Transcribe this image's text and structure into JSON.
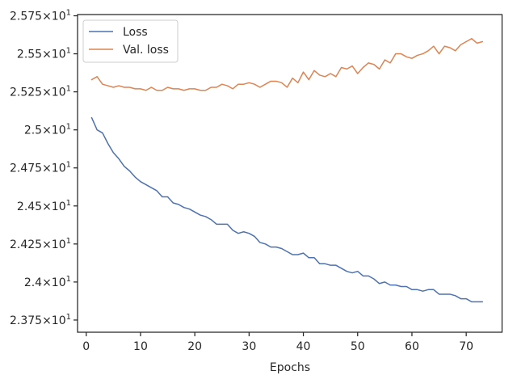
{
  "chart_data": {
    "type": "line",
    "xlabel": "Epochs",
    "ylabel": "",
    "title": "",
    "xlim": [
      -1.6,
      76.6
    ],
    "ylim": [
      23.67,
      25.758
    ],
    "x_ticks": [
      0,
      10,
      20,
      30,
      40,
      50,
      60,
      70
    ],
    "y_ticks": [
      23.75,
      24.0,
      24.25,
      24.5,
      24.75,
      25.0,
      25.25,
      25.5,
      25.75
    ],
    "y_tick_labels": [
      {
        "mant": "2.375",
        "exp": "1"
      },
      {
        "mant": "2.4",
        "exp": "1"
      },
      {
        "mant": "2.425",
        "exp": "1"
      },
      {
        "mant": "2.45",
        "exp": "1"
      },
      {
        "mant": "2.475",
        "exp": "1"
      },
      {
        "mant": "2.5",
        "exp": "1"
      },
      {
        "mant": "2.525",
        "exp": "1"
      },
      {
        "mant": "2.55",
        "exp": "1"
      },
      {
        "mant": "2.575",
        "exp": "1"
      }
    ],
    "grid": false,
    "legend_position": "upper-left",
    "series": [
      {
        "name": "Loss",
        "color": "#4c72b0",
        "x": [
          1,
          2,
          3,
          4,
          5,
          6,
          7,
          8,
          9,
          10,
          11,
          12,
          13,
          14,
          15,
          16,
          17,
          18,
          19,
          20,
          21,
          22,
          23,
          24,
          25,
          26,
          27,
          28,
          29,
          30,
          31,
          32,
          33,
          34,
          35,
          36,
          37,
          38,
          39,
          40,
          41,
          42,
          43,
          44,
          45,
          46,
          47,
          48,
          49,
          50,
          51,
          52,
          53,
          54,
          55,
          56,
          57,
          58,
          59,
          60,
          61,
          62,
          63,
          64,
          65,
          66,
          67,
          68,
          69,
          70,
          71,
          72,
          73
        ],
        "values": [
          25.08,
          25.0,
          24.98,
          24.91,
          24.85,
          24.81,
          24.76,
          24.73,
          24.69,
          24.66,
          24.64,
          24.62,
          24.6,
          24.56,
          24.56,
          24.52,
          24.51,
          24.49,
          24.48,
          24.46,
          24.44,
          24.43,
          24.41,
          24.38,
          24.38,
          24.38,
          24.34,
          24.32,
          24.33,
          24.32,
          24.3,
          24.26,
          24.25,
          24.23,
          24.23,
          24.22,
          24.2,
          24.18,
          24.18,
          24.19,
          24.16,
          24.16,
          24.12,
          24.12,
          24.11,
          24.11,
          24.09,
          24.07,
          24.06,
          24.07,
          24.04,
          24.04,
          24.02,
          23.99,
          24.0,
          23.98,
          23.98,
          23.97,
          23.97,
          23.95,
          23.95,
          23.94,
          23.95,
          23.95,
          23.92,
          23.92,
          23.92,
          23.91,
          23.89,
          23.89,
          23.87,
          23.87,
          23.87
        ]
      },
      {
        "name": "Val. loss",
        "color": "#dd8452",
        "x": [
          1,
          2,
          3,
          4,
          5,
          6,
          7,
          8,
          9,
          10,
          11,
          12,
          13,
          14,
          15,
          16,
          17,
          18,
          19,
          20,
          21,
          22,
          23,
          24,
          25,
          26,
          27,
          28,
          29,
          30,
          31,
          32,
          33,
          34,
          35,
          36,
          37,
          38,
          39,
          40,
          41,
          42,
          43,
          44,
          45,
          46,
          47,
          48,
          49,
          50,
          51,
          52,
          53,
          54,
          55,
          56,
          57,
          58,
          59,
          60,
          61,
          62,
          63,
          64,
          65,
          66,
          67,
          68,
          69,
          70,
          71,
          72,
          73
        ],
        "values": [
          25.33,
          25.35,
          25.3,
          25.29,
          25.28,
          25.29,
          25.28,
          25.28,
          25.27,
          25.27,
          25.26,
          25.28,
          25.26,
          25.26,
          25.28,
          25.27,
          25.27,
          25.26,
          25.27,
          25.27,
          25.26,
          25.26,
          25.28,
          25.28,
          25.3,
          25.29,
          25.27,
          25.3,
          25.3,
          25.31,
          25.3,
          25.28,
          25.3,
          25.32,
          25.32,
          25.31,
          25.28,
          25.34,
          25.31,
          25.38,
          25.33,
          25.39,
          25.36,
          25.35,
          25.37,
          25.35,
          25.41,
          25.4,
          25.42,
          25.37,
          25.41,
          25.44,
          25.43,
          25.4,
          25.46,
          25.44,
          25.5,
          25.5,
          25.48,
          25.47,
          25.49,
          25.5,
          25.52,
          25.55,
          25.5,
          25.55,
          25.54,
          25.52,
          25.56,
          25.58,
          25.6,
          25.57,
          25.58
        ]
      }
    ]
  }
}
